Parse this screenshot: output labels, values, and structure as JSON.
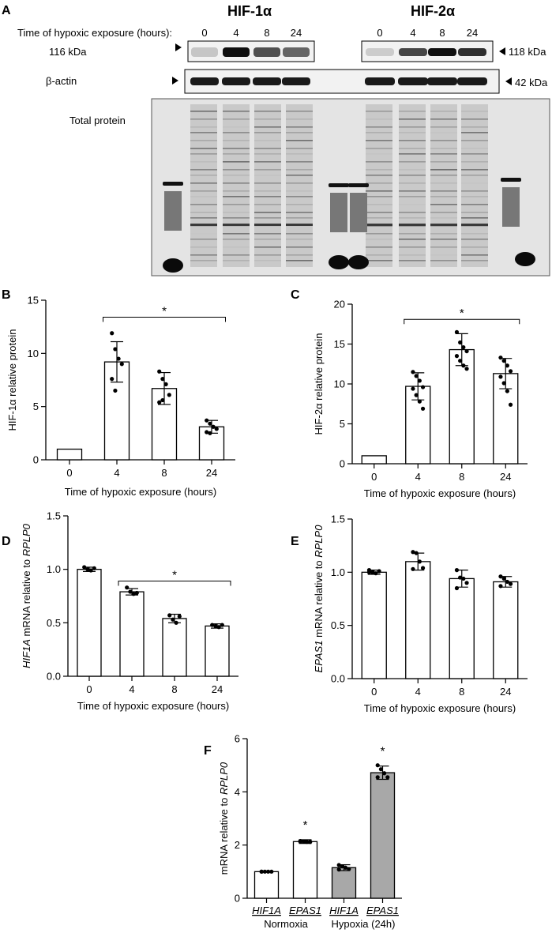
{
  "panel_labels": [
    "A",
    "B",
    "C",
    "D",
    "E",
    "F"
  ],
  "blot": {
    "left_title": "HIF-1α",
    "right_title": "HIF-2α",
    "time_label": "Time of hypoxic exposure (hours):",
    "lanes": [
      "0",
      "4",
      "8",
      "24"
    ],
    "left_marker": "116 kDa",
    "right_marker": "118 kDa",
    "actin_label": "β-actin",
    "actin_marker": "42 kDa",
    "total_label": "Total protein",
    "hif1_intensity": [
      0.15,
      1.0,
      0.7,
      0.6
    ],
    "hif2_intensity": [
      0.12,
      0.75,
      1.0,
      0.85
    ]
  },
  "chart_data": [
    {
      "id": "B",
      "type": "bar",
      "categories": [
        "0",
        "4",
        "8",
        "24"
      ],
      "values": [
        1.0,
        9.2,
        6.7,
        3.1
      ],
      "sd": [
        0,
        1.9,
        1.5,
        0.6
      ],
      "points": [
        [],
        [
          11.9,
          10.4,
          9.5,
          9.0,
          7.6,
          6.5
        ],
        [
          8.3,
          7.6,
          7.1,
          6.1,
          5.4,
          5.6
        ],
        [
          3.7,
          3.4,
          3.1,
          2.9,
          2.6,
          2.5
        ]
      ],
      "ylabel": "HIF-1α relative protein",
      "xlabel": "Time of hypoxic exposure (hours)",
      "ylim": [
        0,
        15
      ],
      "yticks": [
        0,
        5,
        10,
        15
      ],
      "yticklabels": [
        "0",
        "5",
        "10",
        "15"
      ],
      "sig": {
        "text": "*",
        "from": 1,
        "to": 3,
        "y": 13.4
      }
    },
    {
      "id": "C",
      "type": "bar",
      "categories": [
        "0",
        "4",
        "8",
        "24"
      ],
      "values": [
        1.0,
        9.7,
        14.3,
        11.3
      ],
      "sd": [
        0,
        1.7,
        2.0,
        1.9
      ],
      "points": [
        [],
        [
          11.5,
          11.0,
          10.4,
          9.6,
          9.4,
          8.6,
          7.8,
          6.9
        ],
        [
          16.5,
          15.2,
          14.6,
          14.1,
          13.5,
          12.9,
          12.3,
          11.9
        ],
        [
          13.3,
          12.9,
          12.3,
          11.6,
          10.9,
          10.1,
          9.1,
          7.4
        ]
      ],
      "ylabel": "HIF-2α relative protein",
      "xlabel": "Time of hypoxic exposure (hours)",
      "ylim": [
        0,
        20
      ],
      "yticks": [
        0,
        5,
        10,
        15,
        20
      ],
      "yticklabels": [
        "0",
        "5",
        "10",
        "15",
        "20"
      ],
      "sig": {
        "text": "*",
        "from": 1,
        "to": 3,
        "y": 18.1
      }
    },
    {
      "id": "D",
      "type": "bar",
      "categories": [
        "0",
        "4",
        "8",
        "24"
      ],
      "values": [
        1.0,
        0.79,
        0.54,
        0.47
      ],
      "sd": [
        0.02,
        0.03,
        0.04,
        0.02
      ],
      "points": [
        [
          1.02,
          1.0,
          0.99,
          1.01
        ],
        [
          0.83,
          0.79,
          0.77,
          0.78
        ],
        [
          0.57,
          0.53,
          0.5,
          0.56
        ],
        [
          0.48,
          0.47,
          0.46,
          0.48
        ]
      ],
      "ylabel_italic": "HIF1A",
      "ylabel_rest": " mRNA relative to ",
      "ylabel_italic2": "RPLP0",
      "xlabel": "Time of hypoxic exposure (hours)",
      "ylim": [
        0,
        1.5
      ],
      "yticks": [
        0,
        0.5,
        1.0,
        1.5
      ],
      "yticklabels": [
        "0.0",
        "0.5",
        "1.0",
        "1.5"
      ],
      "sig": {
        "text": "*",
        "from": 1,
        "to": 3,
        "y": 0.89
      }
    },
    {
      "id": "E",
      "type": "bar",
      "categories": [
        "0",
        "4",
        "8",
        "24"
      ],
      "values": [
        1.0,
        1.1,
        0.94,
        0.91
      ],
      "sd": [
        0.02,
        0.08,
        0.08,
        0.05
      ],
      "points": [
        [
          1.02,
          1.0,
          0.99,
          1.01,
          1.0
        ],
        [
          1.19,
          1.18,
          1.1,
          1.04,
          1.03
        ],
        [
          1.02,
          0.95,
          0.94,
          0.9,
          0.85
        ],
        [
          0.96,
          0.94,
          0.91,
          0.89,
          0.87
        ]
      ],
      "ylabel_italic": "EPAS1",
      "ylabel_rest": " mRNA relative to ",
      "ylabel_italic2": "RPLP0",
      "xlabel": "Time of hypoxic exposure (hours)",
      "ylim": [
        0,
        1.5
      ],
      "yticks": [
        0,
        0.5,
        1.0,
        1.5
      ],
      "yticklabels": [
        "0.0",
        "0.5",
        "1.0",
        "1.5"
      ]
    },
    {
      "id": "F",
      "type": "bar",
      "categories": [
        "HIF1A",
        "EPAS1",
        "HIF1A",
        "EPAS1"
      ],
      "groups": [
        "Normoxia",
        "Hypoxia (24h)"
      ],
      "values": [
        1.0,
        2.13,
        1.15,
        4.72
      ],
      "sd": [
        0.02,
        0.07,
        0.11,
        0.25
      ],
      "points": [
        [
          1.0,
          1.0,
          1.0,
          1.0,
          1.0
        ],
        [
          2.15,
          2.13,
          2.12,
          2.12,
          2.13
        ],
        [
          1.25,
          1.2,
          1.15,
          1.1,
          1.08
        ],
        [
          5.0,
          4.85,
          4.7,
          4.55,
          4.55
        ]
      ],
      "bar_colors": [
        "#ffffff",
        "#ffffff",
        "#a8a8a8",
        "#a8a8a8"
      ],
      "stars": [
        "",
        "*",
        "",
        "*"
      ],
      "ylabel_rest": "mRNA relative to ",
      "ylabel_italic2": "RPLP0",
      "ylim": [
        0,
        6
      ],
      "yticks": [
        0,
        2,
        4,
        6
      ],
      "yticklabels": [
        "0",
        "2",
        "4",
        "6"
      ]
    }
  ]
}
